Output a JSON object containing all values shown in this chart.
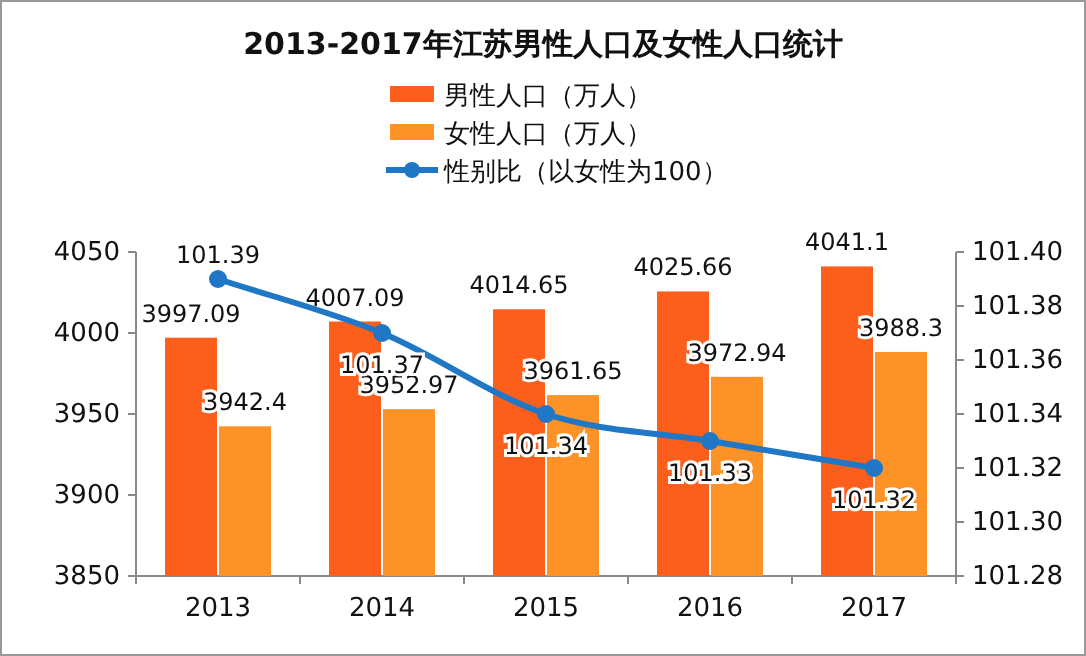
{
  "chart_data": {
    "type": "bar",
    "title": "2013-2017年江苏男性人口及女性人口统计",
    "categories": [
      "2013",
      "2014",
      "2015",
      "2016",
      "2017"
    ],
    "series": [
      {
        "name": "男性人口（万人）",
        "color": "#fc5e1c",
        "values": [
          3997.09,
          4007.09,
          4014.65,
          4025.66,
          4041.1
        ]
      },
      {
        "name": "女性人口（万人）",
        "color": "#fd9226",
        "values": [
          3942.4,
          3952.97,
          3961.65,
          3972.94,
          3988.3
        ]
      },
      {
        "name": "性别比（以女性为100）",
        "type": "line",
        "axis": "y2",
        "color": "#1f77c6",
        "values": [
          101.39,
          101.37,
          101.34,
          101.33,
          101.32
        ]
      }
    ],
    "ylim": [
      3850,
      4050
    ],
    "yticks": [
      3850,
      3900,
      3950,
      4000,
      4050
    ],
    "y2lim": [
      101.28,
      101.4
    ],
    "y2ticks": [
      101.28,
      {
        "value": 101.3,
        "label": "101.30"
      },
      101.32,
      101.34,
      101.36,
      101.38,
      {
        "value": 101.4,
        "label": "101.40"
      }
    ],
    "data_labels": true,
    "legend": "top",
    "marker": "circle",
    "grid": false
  }
}
